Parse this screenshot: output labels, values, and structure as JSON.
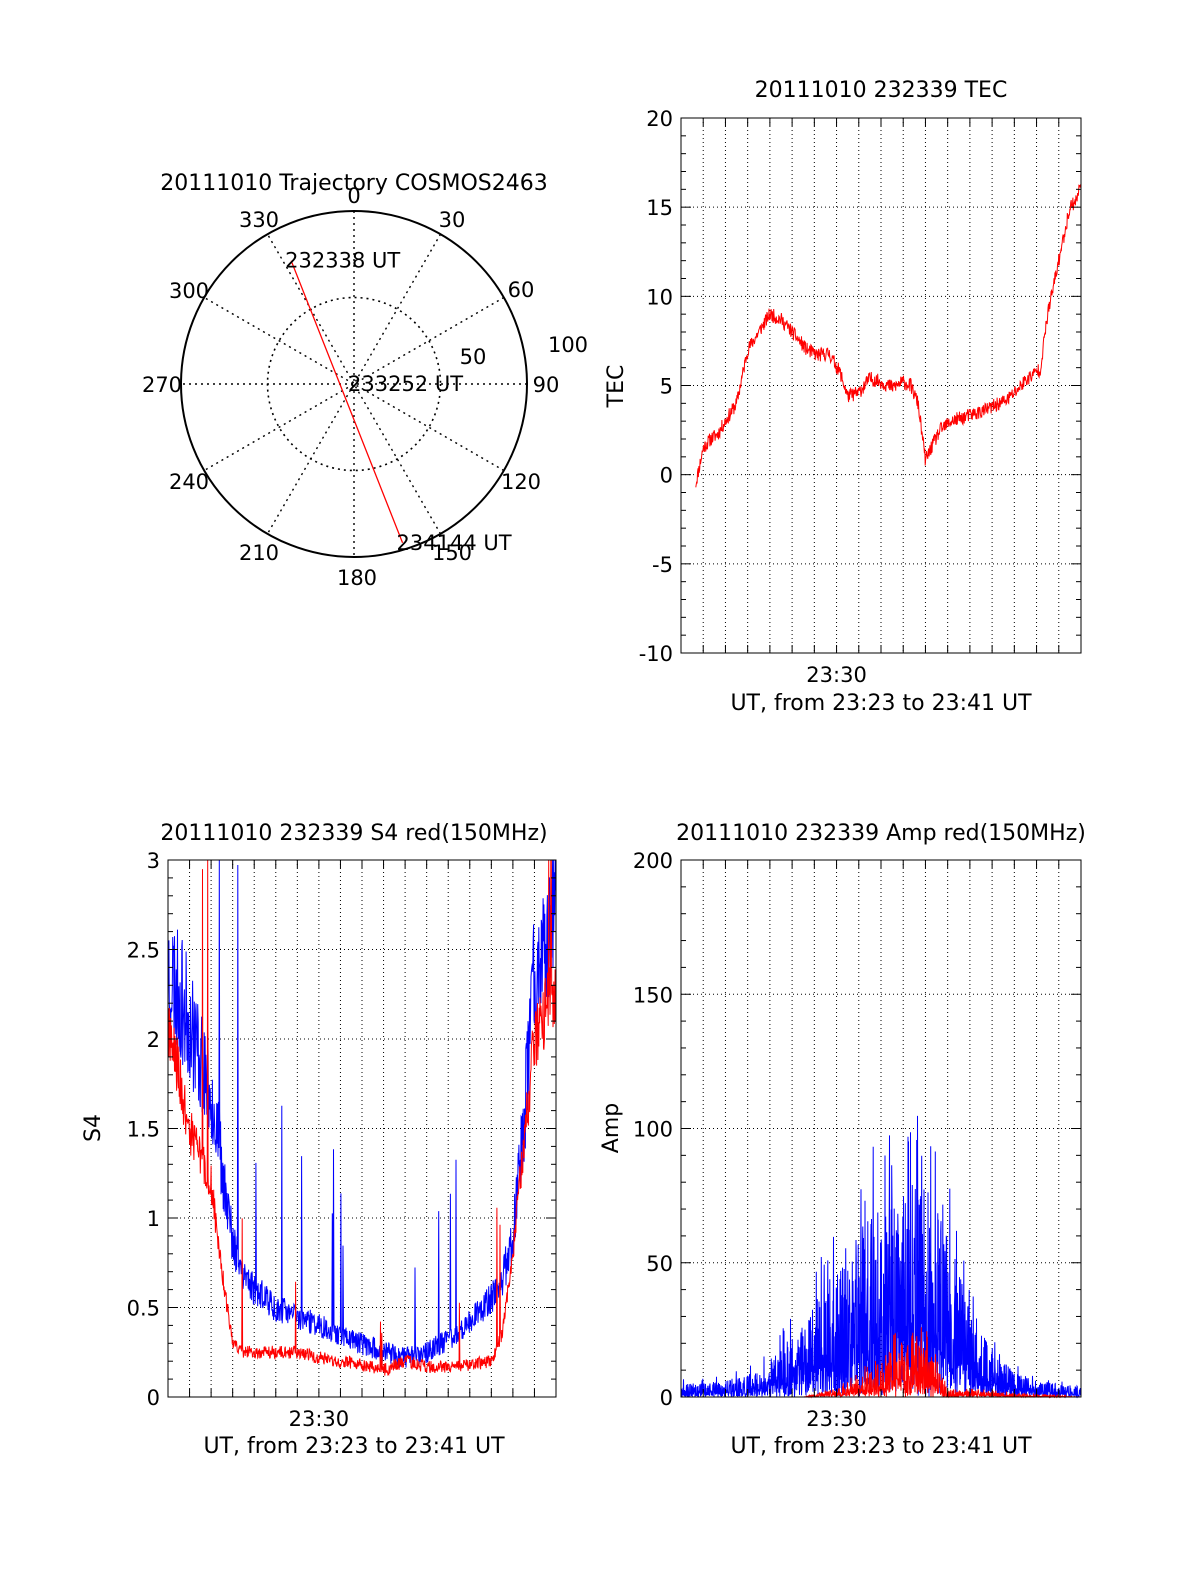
{
  "figure": {
    "background": "#ffffff",
    "foreground": "#000000"
  },
  "chart_data": [
    {
      "id": "trajectory",
      "type": "polar",
      "title": "20111010 Trajectory COSMOS2463",
      "angle_labels": [
        "0",
        "30",
        "60",
        "90",
        "120",
        "150",
        "180",
        "210",
        "240",
        "270",
        "300",
        "330"
      ],
      "radial_ticks": [
        {
          "label": "50",
          "value": 50
        },
        {
          "label": "100",
          "value": 100
        }
      ],
      "r_max": 100,
      "direction": "clockwise, 0 at top",
      "series": [
        {
          "color": "#ff0000",
          "points": [
            {
              "azimuth": 333,
              "zenith": 80
            },
            {
              "azimuth": 163,
              "zenith": 96
            }
          ]
        }
      ],
      "annotations": [
        {
          "text": "232338 UT",
          "azimuth": 333,
          "zenith": 80
        },
        {
          "text": "233252 UT",
          "azimuth": 90,
          "zenith": 0
        },
        {
          "text": "234144 UT",
          "azimuth": 163,
          "zenith": 96
        }
      ]
    },
    {
      "id": "tec",
      "type": "line",
      "title": "20111010 232339 TEC",
      "xlabel": "UT, from 23:23 to 23:41 UT",
      "ylabel": "TEC",
      "xlim": [
        "23:23",
        "23:41"
      ],
      "xticks": [
        {
          "label": "23:30",
          "value": "23:30"
        }
      ],
      "ylim": [
        -10,
        20
      ],
      "yticks": [
        "-10",
        "-5",
        "0",
        "5",
        "10",
        "15",
        "20"
      ],
      "grid": true,
      "series": [
        {
          "color": "#ff0000",
          "noise": 0.4,
          "x": [
            "23:23:40",
            "23:24:00",
            "23:24:20",
            "23:24:40",
            "23:25:00",
            "23:25:30",
            "23:25:50",
            "23:26:00",
            "23:26:30",
            "23:27:00",
            "23:27:30",
            "23:28:00",
            "23:28:40",
            "23:29:10",
            "23:29:40",
            "23:30:10",
            "23:30:30",
            "23:31:00",
            "23:31:30",
            "23:32:00",
            "23:32:30",
            "23:33:00",
            "23:33:20",
            "23:33:40",
            "23:34:00",
            "23:34:20",
            "23:34:40",
            "23:35:10",
            "23:35:40",
            "23:36:10",
            "23:36:40",
            "23:37:10",
            "23:37:40",
            "23:38:10",
            "23:38:30",
            "23:38:50",
            "23:39:00",
            "23:39:10",
            "23:39:30",
            "23:39:50",
            "23:40:10",
            "23:40:30",
            "23:40:50",
            "23:41:00"
          ],
          "y": [
            -0.5,
            1.5,
            2.0,
            2.3,
            3.0,
            4.0,
            6.0,
            7.0,
            8.0,
            9.0,
            8.7,
            8.0,
            7.0,
            6.7,
            6.8,
            5.7,
            4.4,
            4.6,
            5.4,
            5.2,
            4.9,
            5.2,
            5.0,
            4.0,
            0.8,
            1.7,
            2.5,
            3.0,
            3.2,
            3.4,
            3.6,
            3.9,
            4.2,
            4.8,
            5.3,
            5.6,
            5.8,
            5.9,
            9.0,
            11.0,
            13.0,
            15.0,
            15.5,
            16.5
          ]
        }
      ]
    },
    {
      "id": "s4",
      "type": "line",
      "title": "20111010 232339 S4 red(150MHz)",
      "xlabel": "UT, from 23:23 to 23:41 UT",
      "ylabel": "S4",
      "xlim": [
        "23:23",
        "23:41"
      ],
      "xticks": [
        {
          "label": "23:30",
          "value": "23:30"
        }
      ],
      "ylim": [
        0,
        3
      ],
      "yticks": [
        "0",
        "0.5",
        "1",
        "1.5",
        "2",
        "2.5",
        "3"
      ],
      "grid": true,
      "series": [
        {
          "color": "#0000ff",
          "noise": 0.16,
          "x": [
            "23:23:00",
            "23:24:00",
            "23:25:00",
            "23:25:30",
            "23:26:00",
            "23:26:30",
            "23:27:00",
            "23:28:00",
            "23:29:00",
            "23:30:00",
            "23:31:00",
            "23:32:00",
            "23:33:00",
            "23:34:00",
            "23:35:00",
            "23:36:00",
            "23:37:00",
            "23:38:00",
            "23:38:30",
            "23:39:00",
            "23:39:30",
            "23:40:00",
            "23:41:00"
          ],
          "y": [
            2.4,
            2.1,
            1.7,
            1.3,
            0.85,
            0.7,
            0.6,
            0.5,
            0.45,
            0.4,
            0.35,
            0.3,
            0.25,
            0.22,
            0.25,
            0.32,
            0.42,
            0.55,
            0.65,
            0.9,
            1.5,
            2.4,
            2.7
          ]
        },
        {
          "color": "#ff0000",
          "noise": 0.09,
          "x": [
            "23:23:00",
            "23:24:00",
            "23:25:00",
            "23:25:30",
            "23:26:00",
            "23:26:30",
            "23:27:00",
            "23:28:00",
            "23:29:00",
            "23:30:00",
            "23:31:00",
            "23:32:00",
            "23:33:00",
            "23:34:00",
            "23:35:00",
            "23:36:00",
            "23:37:00",
            "23:38:00",
            "23:38:30",
            "23:39:00",
            "23:39:30",
            "23:40:00",
            "23:41:00"
          ],
          "y": [
            2.1,
            1.5,
            1.2,
            0.7,
            0.3,
            0.25,
            0.25,
            0.25,
            0.25,
            0.22,
            0.2,
            0.18,
            0.15,
            0.2,
            0.17,
            0.17,
            0.18,
            0.2,
            0.35,
            0.8,
            1.4,
            2.0,
            2.3
          ]
        }
      ]
    },
    {
      "id": "amp",
      "type": "line",
      "title": "20111010 232339 Amp red(150MHz)",
      "xlabel": "UT, from 23:23 to 23:41 UT",
      "ylabel": "Amp",
      "xlim": [
        "23:23",
        "23:41"
      ],
      "xticks": [
        {
          "label": "23:30",
          "value": "23:30"
        }
      ],
      "ylim": [
        0,
        200
      ],
      "yticks": [
        "0",
        "50",
        "100",
        "150",
        "200"
      ],
      "grid": true,
      "series": [
        {
          "color": "#0000ff",
          "envelope": true,
          "x": [
            "23:23:00",
            "23:25:00",
            "23:26:30",
            "23:27:30",
            "23:28:30",
            "23:29:30",
            "23:30:30",
            "23:31:30",
            "23:32:30",
            "23:33:30",
            "23:34:00",
            "23:35:00",
            "23:36:00",
            "23:37:00",
            "23:38:00",
            "23:39:00",
            "23:40:00",
            "23:41:00"
          ],
          "y": [
            5,
            6,
            10,
            18,
            28,
            42,
            58,
            68,
            75,
            82,
            80,
            60,
            35,
            16,
            10,
            6,
            5,
            4
          ]
        },
        {
          "color": "#ff0000",
          "envelope": true,
          "x": [
            "23:23:00",
            "23:28:30",
            "23:29:30",
            "23:30:30",
            "23:31:30",
            "23:32:00",
            "23:32:30",
            "23:33:00",
            "23:33:30",
            "23:34:00",
            "23:34:30",
            "23:35:00",
            "23:41:00"
          ],
          "y": [
            0,
            0,
            2,
            5,
            10,
            14,
            18,
            22,
            25,
            20,
            12,
            3,
            0
          ]
        }
      ]
    }
  ]
}
